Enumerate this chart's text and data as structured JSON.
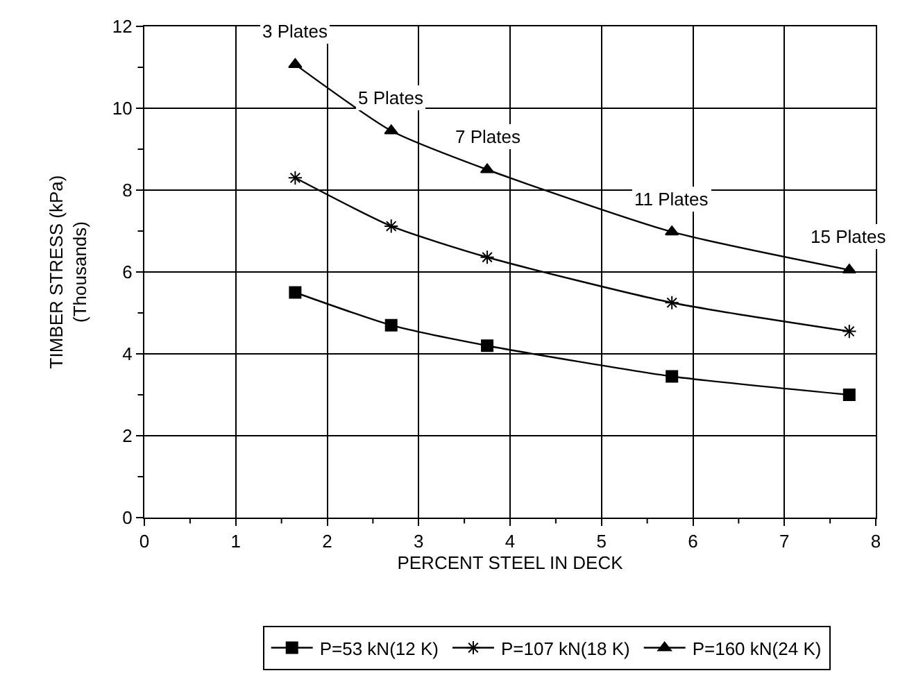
{
  "chart_data": {
    "type": "line",
    "xlabel": "PERCENT STEEL IN DECK",
    "ylabel": "TIMBER STRESS (kPa)\n(Thousands)",
    "x": [
      1.65,
      2.7,
      3.75,
      5.77,
      7.71
    ],
    "series": [
      {
        "name": "P=53 kN(12 K)",
        "color": "#000000",
        "marker": "square",
        "values": [
          5.5,
          4.7,
          4.2,
          3.45,
          3.0
        ]
      },
      {
        "name": "P=107 kN(18 K)",
        "color": "#000000",
        "marker": "cross",
        "values": [
          8.3,
          7.12,
          6.36,
          5.25,
          4.55
        ]
      },
      {
        "name": "P=160 kN(24 K)",
        "color": "#000000",
        "marker": "triangle",
        "values": [
          11.07,
          9.45,
          8.5,
          6.98,
          6.05
        ]
      }
    ],
    "annotations": [
      {
        "text": "3 Plates",
        "x": 1.65,
        "y": 11.07
      },
      {
        "text": "5 Plates",
        "x": 2.7,
        "y": 9.45
      },
      {
        "text": "7 Plates",
        "x": 3.75,
        "y": 8.5
      },
      {
        "text": "11 Plates",
        "x": 5.77,
        "y": 6.98
      },
      {
        "text": "15 Plates",
        "x": 7.71,
        "y": 6.05
      }
    ],
    "xlim": [
      0,
      8
    ],
    "ylim": [
      0,
      12
    ],
    "xticks": [
      0,
      {
        "value": 0.5,
        "label": null
      },
      1,
      {
        "value": 1.5,
        "label": null
      },
      2,
      {
        "value": 2.5,
        "label": null
      },
      3,
      {
        "value": 3.5,
        "label": null
      },
      4,
      {
        "value": 4.5,
        "label": null
      },
      5,
      {
        "value": 5.5,
        "label": null
      },
      6,
      {
        "value": 6.5,
        "label": null
      },
      7,
      {
        "value": 7.5,
        "label": null
      },
      8
    ],
    "yticks": [
      0,
      {
        "value": 1,
        "label": null
      },
      2,
      {
        "value": 3,
        "label": null
      },
      4,
      {
        "value": 5,
        "label": null
      },
      6,
      {
        "value": 7,
        "label": null
      },
      8,
      {
        "value": 9,
        "label": null
      },
      10,
      {
        "value": 11,
        "label": null
      },
      12
    ],
    "grid": true,
    "legend": "bottom",
    "line_style": "solid"
  }
}
